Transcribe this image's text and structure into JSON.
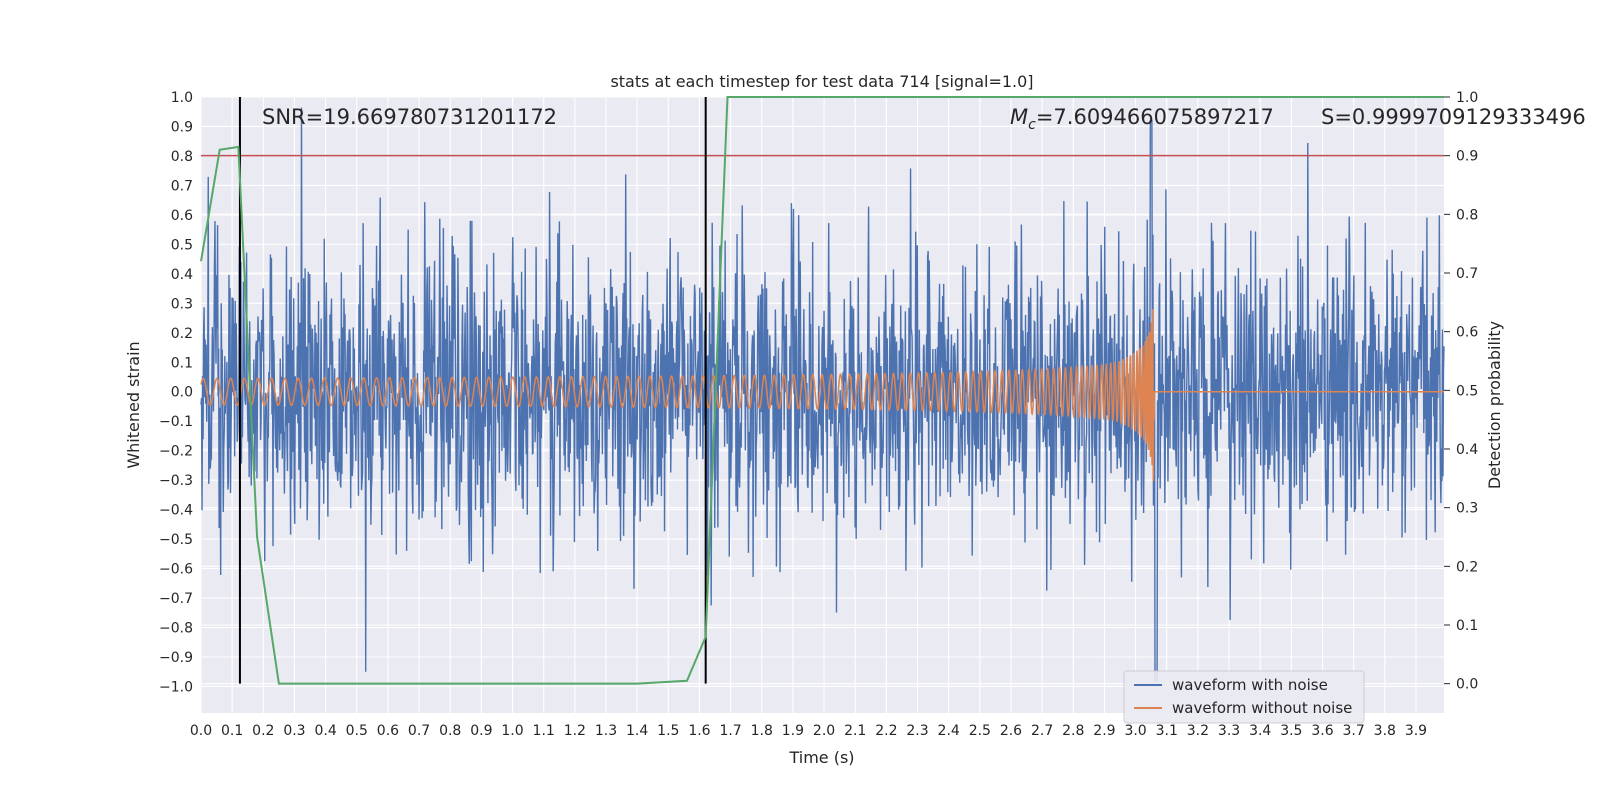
{
  "chart_data": {
    "type": "line",
    "title": "stats at each timestep for test data 714 [signal=1.0]",
    "xlabel": "Time (s)",
    "ylabel_left": "Whitened strain",
    "ylabel_right": "Detection probability",
    "xlim": [
      0.0,
      3.99
    ],
    "ylim_left": [
      -1.09,
      1.0
    ],
    "ylim_right": [
      -0.05,
      1.0
    ],
    "x_ticks": [
      "0.0",
      "0.1",
      "0.2",
      "0.3",
      "0.4",
      "0.5",
      "0.6",
      "0.7",
      "0.8",
      "0.9",
      "1.0",
      "1.1",
      "1.2",
      "1.3",
      "1.4",
      "1.5",
      "1.6",
      "1.7",
      "1.8",
      "1.9",
      "2.0",
      "2.1",
      "2.2",
      "2.3",
      "2.4",
      "2.5",
      "2.6",
      "2.7",
      "2.8",
      "2.9",
      "3.0",
      "3.1",
      "3.2",
      "3.3",
      "3.4",
      "3.5",
      "3.6",
      "3.7",
      "3.8",
      "3.9"
    ],
    "y_ticks_left": [
      "1.0",
      "0.9",
      "0.8",
      "0.7",
      "0.6",
      "0.5",
      "0.4",
      "0.3",
      "0.2",
      "0.1",
      "0.0",
      "−0.1",
      "−0.2",
      "−0.3",
      "−0.4",
      "−0.5",
      "−0.6",
      "−0.7",
      "−0.8",
      "−0.9",
      "−1.0"
    ],
    "y_ticks_right": [
      "1.0",
      "0.9",
      "0.8",
      "0.7",
      "0.6",
      "0.5",
      "0.4",
      "0.3",
      "0.2",
      "0.1",
      "0.0"
    ],
    "grid": true,
    "legend_position": "lower-right",
    "annotations": {
      "snr": "SNR=19.669780731201172",
      "mc_symbol": "M",
      "mc_sub": "c",
      "mc_value": "=7.609466075897217",
      "s": "S=0.9999709129333496"
    },
    "series": [
      {
        "name": "waveform with noise",
        "color": "#4c72b0",
        "axis": "left",
        "kind": "noise",
        "amplitude_std": 0.24,
        "x_range": [
          0.0,
          3.99
        ]
      },
      {
        "name": "waveform without noise",
        "color": "#dd8452",
        "axis": "left",
        "kind": "chirp",
        "merger_time": 3.06,
        "x_range": [
          0.0,
          3.99
        ]
      },
      {
        "color": "#55a868",
        "axis": "right",
        "kind": "probability",
        "x": [
          0.0,
          0.06,
          0.12,
          0.18,
          0.25,
          0.5,
          1.0,
          1.4,
          1.56,
          1.62,
          1.69,
          1.75,
          2.5,
          3.0,
          3.5,
          3.99
        ],
        "y": [
          0.72,
          0.91,
          0.915,
          0.25,
          0.0,
          0.0,
          0.0,
          0.0,
          0.005,
          0.08,
          1.0,
          1.0,
          1.0,
          1.0,
          1.0,
          1.0
        ]
      }
    ],
    "reference_lines": {
      "threshold_right": 0.9,
      "threshold_color": "#c44e52",
      "vertical_x": [
        0.125,
        1.62
      ],
      "vertical_color": "#000000"
    }
  }
}
